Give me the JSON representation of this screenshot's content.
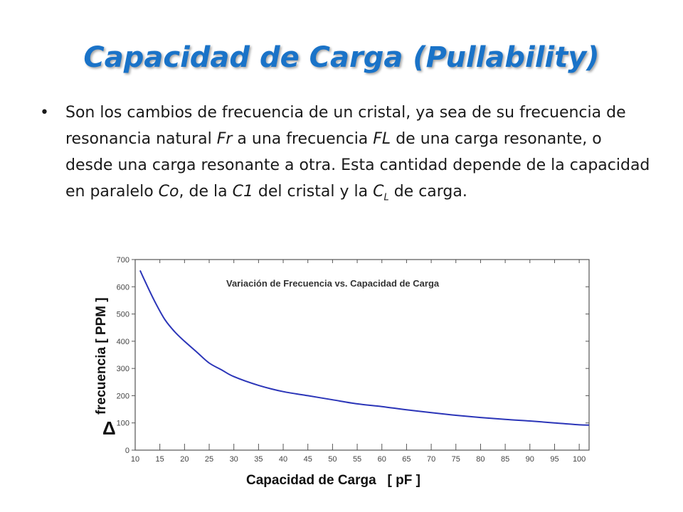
{
  "slide": {
    "title": "Capacidad de Carga (Pullability)",
    "bullet_symbol": "•",
    "bullet": {
      "p1": "Son los cambios de frecuencia de un cristal, ya sea de su frecuencia de resonancia natural ",
      "fr": "Fr",
      "p2": " a una frecuencia ",
      "fl": "FL",
      "p3": " de una carga resonante, o desde una carga resonante a otra. Esta cantidad depende de la capacidad en paralelo ",
      "co": "Co",
      "p4": ", de la ",
      "c1": "C1",
      "p5": " del cristal y la ",
      "cl": "C",
      "cl_sub": "L",
      "p6": " de carga."
    }
  },
  "chart_data": {
    "type": "line",
    "title": "Variación de Frecuencia  vs. Capacidad de Carga",
    "xlabel": "Capacidad de Carga   [ pF ]",
    "ylabel_symbol": "Δ",
    "ylabel": "frecuencia   [ PPM ]",
    "xlim": [
      10,
      102
    ],
    "ylim": [
      0,
      700
    ],
    "x_ticks": [
      10,
      15,
      20,
      25,
      30,
      35,
      40,
      45,
      50,
      55,
      60,
      65,
      70,
      75,
      80,
      85,
      90,
      95,
      100
    ],
    "y_ticks": [
      0,
      100,
      200,
      300,
      400,
      500,
      600,
      700
    ],
    "grid": false,
    "line_color": "#2b35b8",
    "series": [
      {
        "x": [
          11,
          12,
          14,
          16,
          18,
          20,
          22.5,
          25,
          27.5,
          30,
          35,
          40,
          45,
          50,
          55,
          60,
          65,
          70,
          75,
          80,
          85,
          90,
          95,
          100,
          102
        ],
        "values": [
          660,
          620,
          545,
          480,
          435,
          400,
          360,
          320,
          295,
          270,
          238,
          215,
          200,
          185,
          170,
          160,
          148,
          138,
          128,
          120,
          113,
          107,
          100,
          93,
          92
        ]
      }
    ]
  }
}
